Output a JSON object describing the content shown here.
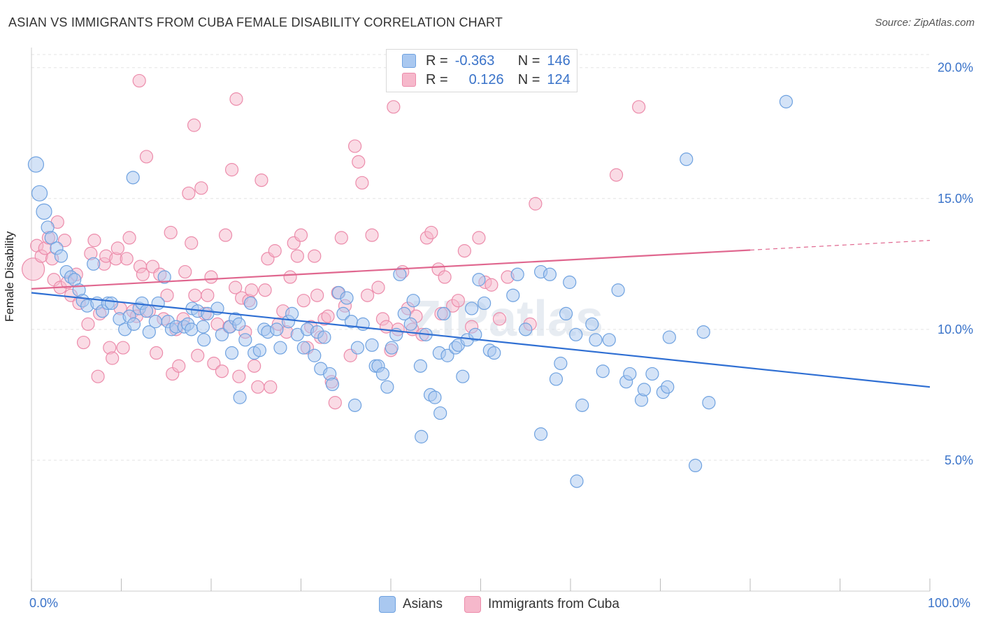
{
  "header": {
    "title": "ASIAN VS IMMIGRANTS FROM CUBA FEMALE DISABILITY CORRELATION CHART",
    "source": "Source: ZipAtlas.com"
  },
  "watermark": "ZIPatlas",
  "legend": {
    "rows": [
      {
        "r_label": "R =",
        "r_value": "-0.363",
        "n_label": "N =",
        "n_value": "146",
        "color": "#a9c8f0"
      },
      {
        "r_label": "R =",
        "r_value": "0.126",
        "n_label": "N =",
        "n_value": "124",
        "color": "#f6b8cb"
      }
    ]
  },
  "chart_data": {
    "type": "scatter",
    "ylabel": "Female Disability",
    "xlim": [
      0,
      100
    ],
    "ylim": [
      0,
      20.5
    ],
    "x_tick_labels": [
      "0.0%",
      "100.0%"
    ],
    "y_ticks": [
      5,
      10,
      15,
      20
    ],
    "y_tick_labels": [
      "5.0%",
      "10.0%",
      "15.0%",
      "20.0%"
    ],
    "grid": true,
    "legend_position": "bottom",
    "series": [
      {
        "name": "Asians",
        "color": "#6fa2e0",
        "fill": "#a9c8f0",
        "trend": {
          "x0": 0,
          "y0": 11.4,
          "x1": 100,
          "y1": 7.8,
          "dash_from": null,
          "color": "#2f6fd3"
        },
        "points": [
          [
            0.5,
            16.3
          ],
          [
            0.9,
            15.2
          ],
          [
            1.4,
            14.5
          ],
          [
            1.8,
            13.9
          ],
          [
            2.2,
            13.5
          ],
          [
            2.8,
            13.1
          ],
          [
            3.3,
            12.8
          ],
          [
            3.9,
            12.2
          ],
          [
            4.4,
            12.0
          ],
          [
            4.8,
            11.9
          ],
          [
            5.3,
            11.5
          ],
          [
            5.7,
            11.1
          ],
          [
            6.2,
            10.9
          ],
          [
            6.9,
            12.5
          ],
          [
            7.3,
            11.0
          ],
          [
            7.9,
            10.7
          ],
          [
            8.5,
            11.0
          ],
          [
            8.9,
            11.0
          ],
          [
            9.8,
            10.4
          ],
          [
            10.4,
            10.0
          ],
          [
            10.9,
            10.5
          ],
          [
            11.4,
            10.2
          ],
          [
            12.0,
            10.8
          ],
          [
            12.3,
            11.0
          ],
          [
            12.8,
            10.7
          ],
          [
            13.1,
            9.9
          ],
          [
            13.8,
            10.3
          ],
          [
            14.1,
            11.0
          ],
          [
            14.8,
            12.0
          ],
          [
            15.2,
            10.3
          ],
          [
            15.6,
            10.0
          ],
          [
            16.1,
            10.1
          ],
          [
            17.0,
            10.1
          ],
          [
            17.4,
            10.2
          ],
          [
            17.8,
            10.0
          ],
          [
            17.9,
            10.8
          ],
          [
            18.5,
            10.7
          ],
          [
            19.1,
            10.1
          ],
          [
            19.2,
            9.6
          ],
          [
            19.6,
            10.6
          ],
          [
            20.7,
            10.8
          ],
          [
            21.2,
            9.8
          ],
          [
            22.1,
            10.1
          ],
          [
            22.3,
            9.1
          ],
          [
            22.7,
            10.4
          ],
          [
            23.1,
            10.2
          ],
          [
            23.8,
            9.6
          ],
          [
            24.4,
            11.0
          ],
          [
            24.8,
            9.1
          ],
          [
            25.4,
            9.2
          ],
          [
            25.9,
            10.0
          ],
          [
            26.3,
            9.9
          ],
          [
            27.3,
            10.0
          ],
          [
            27.7,
            9.3
          ],
          [
            28.6,
            10.3
          ],
          [
            29.0,
            10.6
          ],
          [
            29.6,
            9.8
          ],
          [
            30.3,
            9.3
          ],
          [
            30.7,
            10.0
          ],
          [
            31.5,
            9.0
          ],
          [
            31.8,
            9.9
          ],
          [
            32.2,
            8.5
          ],
          [
            32.6,
            9.7
          ],
          [
            33.2,
            8.3
          ],
          [
            33.5,
            7.9
          ],
          [
            34.2,
            11.4
          ],
          [
            34.7,
            10.6
          ],
          [
            35.1,
            11.2
          ],
          [
            35.6,
            10.3
          ],
          [
            36.0,
            7.1
          ],
          [
            36.3,
            9.3
          ],
          [
            36.9,
            10.2
          ],
          [
            37.9,
            9.4
          ],
          [
            38.3,
            8.6
          ],
          [
            38.6,
            8.6
          ],
          [
            39.1,
            8.3
          ],
          [
            39.6,
            7.8
          ],
          [
            40.1,
            9.3
          ],
          [
            40.6,
            9.8
          ],
          [
            41.0,
            12.1
          ],
          [
            41.5,
            10.6
          ],
          [
            42.2,
            10.2
          ],
          [
            42.5,
            11.1
          ],
          [
            43.3,
            8.6
          ],
          [
            43.9,
            9.8
          ],
          [
            44.4,
            7.5
          ],
          [
            44.9,
            7.4
          ],
          [
            45.4,
            9.1
          ],
          [
            45.9,
            10.6
          ],
          [
            46.3,
            9.0
          ],
          [
            47.2,
            9.3
          ],
          [
            47.5,
            9.4
          ],
          [
            48.0,
            8.2
          ],
          [
            48.5,
            9.6
          ],
          [
            49.0,
            10.8
          ],
          [
            49.4,
            9.8
          ],
          [
            49.8,
            11.9
          ],
          [
            50.4,
            11.0
          ],
          [
            51.0,
            9.2
          ],
          [
            51.5,
            9.1
          ],
          [
            53.6,
            11.3
          ],
          [
            54.1,
            12.1
          ],
          [
            55.0,
            10.0
          ],
          [
            56.7,
            12.2
          ],
          [
            56.7,
            6.0
          ],
          [
            57.7,
            12.1
          ],
          [
            58.4,
            8.1
          ],
          [
            58.9,
            8.7
          ],
          [
            59.5,
            10.6
          ],
          [
            59.9,
            11.8
          ],
          [
            60.6,
            9.8
          ],
          [
            61.3,
            7.1
          ],
          [
            62.4,
            10.2
          ],
          [
            62.8,
            9.6
          ],
          [
            63.6,
            8.4
          ],
          [
            64.3,
            9.6
          ],
          [
            65.3,
            11.5
          ],
          [
            66.2,
            8.0
          ],
          [
            66.6,
            8.3
          ],
          [
            67.9,
            7.3
          ],
          [
            68.2,
            7.7
          ],
          [
            69.1,
            8.3
          ],
          [
            70.3,
            7.6
          ],
          [
            70.8,
            7.8
          ],
          [
            71.0,
            9.7
          ],
          [
            72.9,
            16.5
          ],
          [
            73.9,
            4.8
          ],
          [
            75.4,
            7.2
          ],
          [
            84.0,
            18.7
          ],
          [
            11.3,
            15.8
          ],
          [
            74.8,
            9.9
          ],
          [
            60.7,
            4.2
          ],
          [
            43.4,
            5.9
          ],
          [
            45.5,
            6.8
          ],
          [
            23.2,
            7.4
          ]
        ]
      },
      {
        "name": "Immigrants from Cuba",
        "color": "#ec8cab",
        "fill": "#f6b8cb",
        "trend": {
          "x0": 0,
          "y0": 11.55,
          "x1": 100,
          "y1": 13.4,
          "dash_from": 80,
          "color": "#e0678f"
        },
        "points": [
          [
            0.2,
            12.3
          ],
          [
            0.6,
            13.2
          ],
          [
            1.1,
            12.8
          ],
          [
            1.5,
            13.1
          ],
          [
            1.9,
            13.5
          ],
          [
            2.3,
            12.7
          ],
          [
            2.5,
            11.9
          ],
          [
            2.9,
            14.1
          ],
          [
            3.2,
            11.6
          ],
          [
            3.7,
            13.4
          ],
          [
            4.0,
            11.8
          ],
          [
            4.4,
            11.3
          ],
          [
            5.0,
            12.1
          ],
          [
            5.3,
            11.0
          ],
          [
            5.8,
            9.5
          ],
          [
            6.3,
            10.2
          ],
          [
            6.6,
            12.9
          ],
          [
            7.0,
            13.4
          ],
          [
            7.4,
            8.2
          ],
          [
            7.6,
            10.6
          ],
          [
            8.1,
            12.5
          ],
          [
            8.3,
            12.8
          ],
          [
            8.7,
            9.3
          ],
          [
            9.0,
            8.9
          ],
          [
            9.4,
            12.7
          ],
          [
            9.6,
            13.1
          ],
          [
            9.9,
            10.8
          ],
          [
            10.2,
            9.3
          ],
          [
            10.6,
            12.7
          ],
          [
            10.9,
            13.5
          ],
          [
            11.3,
            10.7
          ],
          [
            11.7,
            10.5
          ],
          [
            12.1,
            12.4
          ],
          [
            12.4,
            12.1
          ],
          [
            12.8,
            16.6
          ],
          [
            13.1,
            10.7
          ],
          [
            13.5,
            12.4
          ],
          [
            13.9,
            9.1
          ],
          [
            14.3,
            12.1
          ],
          [
            14.7,
            10.4
          ],
          [
            15.1,
            11.3
          ],
          [
            15.5,
            13.7
          ],
          [
            15.7,
            8.3
          ],
          [
            16.1,
            10.0
          ],
          [
            16.4,
            8.6
          ],
          [
            16.9,
            10.4
          ],
          [
            17.1,
            12.2
          ],
          [
            17.5,
            15.2
          ],
          [
            17.8,
            13.3
          ],
          [
            18.2,
            11.3
          ],
          [
            18.5,
            9.0
          ],
          [
            18.9,
            15.4
          ],
          [
            19.3,
            10.6
          ],
          [
            19.6,
            11.3
          ],
          [
            20.0,
            12.0
          ],
          [
            20.3,
            8.7
          ],
          [
            20.7,
            10.2
          ],
          [
            21.2,
            8.4
          ],
          [
            21.6,
            13.6
          ],
          [
            22.0,
            10.1
          ],
          [
            22.3,
            16.1
          ],
          [
            22.7,
            11.6
          ],
          [
            23.1,
            8.2
          ],
          [
            23.4,
            11.2
          ],
          [
            23.8,
            9.9
          ],
          [
            24.2,
            11.1
          ],
          [
            24.5,
            11.5
          ],
          [
            24.8,
            8.6
          ],
          [
            25.2,
            7.8
          ],
          [
            25.6,
            15.7
          ],
          [
            26.0,
            11.5
          ],
          [
            26.3,
            12.7
          ],
          [
            26.6,
            7.8
          ],
          [
            27.1,
            13.0
          ],
          [
            27.5,
            10.2
          ],
          [
            28.0,
            10.7
          ],
          [
            28.4,
            9.9
          ],
          [
            28.8,
            12.0
          ],
          [
            29.2,
            13.3
          ],
          [
            29.6,
            12.8
          ],
          [
            30.0,
            13.6
          ],
          [
            30.3,
            11.1
          ],
          [
            30.7,
            9.3
          ],
          [
            31.1,
            10.1
          ],
          [
            31.5,
            12.8
          ],
          [
            31.8,
            11.3
          ],
          [
            32.2,
            9.7
          ],
          [
            32.6,
            10.4
          ],
          [
            33.0,
            10.5
          ],
          [
            33.4,
            8.0
          ],
          [
            33.8,
            7.2
          ],
          [
            34.1,
            11.4
          ],
          [
            34.5,
            13.5
          ],
          [
            34.9,
            10.9
          ],
          [
            35.5,
            9.0
          ],
          [
            36.0,
            17.0
          ],
          [
            36.4,
            16.4
          ],
          [
            36.8,
            15.6
          ],
          [
            37.4,
            11.3
          ],
          [
            37.9,
            13.6
          ],
          [
            38.6,
            11.6
          ],
          [
            39.1,
            10.4
          ],
          [
            39.5,
            10.1
          ],
          [
            40.0,
            9.2
          ],
          [
            40.8,
            10.0
          ],
          [
            41.3,
            12.2
          ],
          [
            41.9,
            10.8
          ],
          [
            42.4,
            10.0
          ],
          [
            42.8,
            10.5
          ],
          [
            43.5,
            9.8
          ],
          [
            44.0,
            13.5
          ],
          [
            44.5,
            13.7
          ],
          [
            45.3,
            12.3
          ],
          [
            45.6,
            10.6
          ],
          [
            46.0,
            12.0
          ],
          [
            46.9,
            10.9
          ],
          [
            47.5,
            11.1
          ],
          [
            48.2,
            13.0
          ],
          [
            49.0,
            10.1
          ],
          [
            49.8,
            13.5
          ],
          [
            50.5,
            11.8
          ],
          [
            51.2,
            11.7
          ],
          [
            52.1,
            10.4
          ],
          [
            53.0,
            12.0
          ],
          [
            55.5,
            10.2
          ],
          [
            56.1,
            14.8
          ],
          [
            65.1,
            15.9
          ],
          [
            67.6,
            18.5
          ],
          [
            12.0,
            19.5
          ],
          [
            18.1,
            17.8
          ],
          [
            22.8,
            18.8
          ],
          [
            40.3,
            18.5
          ]
        ]
      }
    ]
  },
  "bottom_legend": [
    {
      "label": "Asians",
      "color": "#a9c8f0",
      "border": "#6fa2e0"
    },
    {
      "label": "Immigrants from Cuba",
      "color": "#f6b8cb",
      "border": "#ec8cab"
    }
  ]
}
